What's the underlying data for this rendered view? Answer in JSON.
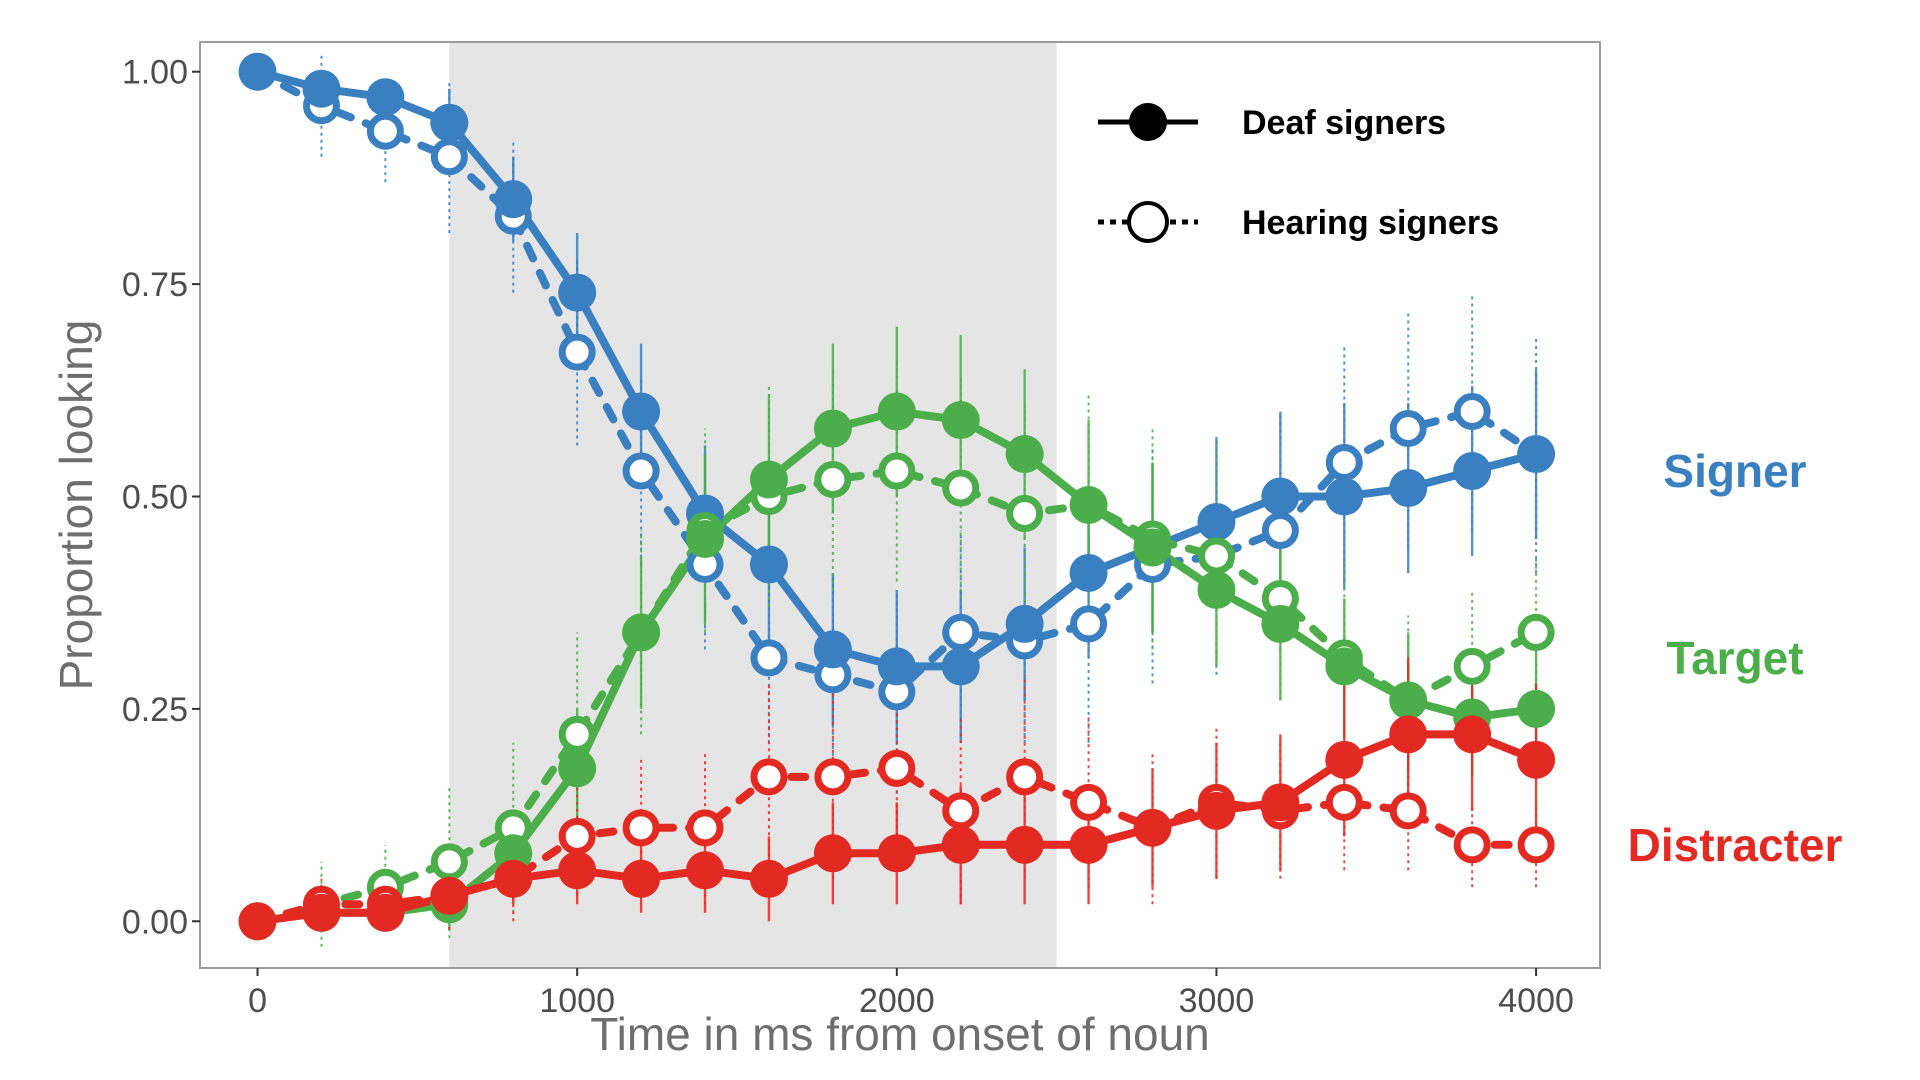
{
  "chart_data": {
    "type": "line",
    "title": "",
    "xlabel": "Time in ms from onset of noun",
    "ylabel": "Proportion looking",
    "xlim": [
      -180,
      4200
    ],
    "ylim": [
      -0.055,
      1.035
    ],
    "x_ticks": [
      0,
      1000,
      2000,
      3000,
      4000
    ],
    "x_tick_labels": [
      "0",
      "1000",
      "2000",
      "3000",
      "4000"
    ],
    "y_ticks": [
      0,
      0.25,
      0.5,
      0.75,
      1.0
    ],
    "y_tick_labels": [
      "0.00",
      "0.25",
      "0.50",
      "0.75",
      "1.00"
    ],
    "grid": false,
    "shaded_region": {
      "x_start": 600,
      "x_end": 2500,
      "color": "#e5e5e5"
    },
    "legend": {
      "position": "top-right",
      "entries": [
        {
          "label": "Deaf signers",
          "style": "solid",
          "marker": "filled-circle"
        },
        {
          "label": "Hearing signers",
          "style": "dotted",
          "marker": "open-circle"
        }
      ]
    },
    "colors": {
      "signer": "#3a7fc0",
      "target": "#4cae4a",
      "distracter": "#e22a23"
    },
    "x": [
      0,
      200,
      400,
      600,
      800,
      1000,
      1200,
      1400,
      1600,
      1800,
      2000,
      2200,
      2400,
      2600,
      2800,
      3000,
      3200,
      3400,
      3600,
      3800,
      4000
    ],
    "series": [
      {
        "name": "Signer",
        "group": "Deaf signers",
        "color": "#3a7fc0",
        "style": "solid",
        "values": [
          1.0,
          0.98,
          0.97,
          0.94,
          0.85,
          0.74,
          0.6,
          0.48,
          0.42,
          0.32,
          0.3,
          0.3,
          0.35,
          0.41,
          0.44,
          0.47,
          0.5,
          0.5,
          0.51,
          0.53,
          0.55
        ],
        "errors": [
          0,
          0.02,
          0.02,
          0.04,
          0.05,
          0.07,
          0.08,
          0.08,
          0.09,
          0.09,
          0.09,
          0.09,
          0.09,
          0.1,
          0.1,
          0.1,
          0.1,
          0.11,
          0.1,
          0.1,
          0.1
        ]
      },
      {
        "name": "Signer",
        "group": "Hearing signers",
        "color": "#3a7fc0",
        "style": "dotted",
        "values": [
          1.0,
          0.96,
          0.93,
          0.9,
          0.83,
          0.67,
          0.53,
          0.42,
          0.31,
          0.29,
          0.27,
          0.34,
          0.33,
          0.35,
          0.42,
          0.43,
          0.46,
          0.54,
          0.58,
          0.6,
          0.55
        ],
        "errors": [
          0,
          0.06,
          0.06,
          0.09,
          0.09,
          0.11,
          0.11,
          0.1,
          0.1,
          0.12,
          0.12,
          0.12,
          0.12,
          0.14,
          0.14,
          0.14,
          0.14,
          0.14,
          0.14,
          0.14,
          0.14
        ]
      },
      {
        "name": "Target",
        "group": "Deaf signers",
        "color": "#4cae4a",
        "style": "solid",
        "values": [
          0.0,
          0.01,
          0.01,
          0.02,
          0.08,
          0.18,
          0.34,
          0.45,
          0.52,
          0.58,
          0.6,
          0.59,
          0.55,
          0.49,
          0.44,
          0.39,
          0.35,
          0.3,
          0.26,
          0.24,
          0.25
        ],
        "errors": [
          0,
          0.02,
          0.02,
          0.03,
          0.05,
          0.07,
          0.09,
          0.1,
          0.1,
          0.1,
          0.1,
          0.1,
          0.1,
          0.1,
          0.1,
          0.09,
          0.09,
          0.08,
          0.08,
          0.07,
          0.07
        ]
      },
      {
        "name": "Target",
        "group": "Hearing signers",
        "color": "#4cae4a",
        "style": "dotted",
        "values": [
          0.0,
          0.02,
          0.04,
          0.07,
          0.11,
          0.22,
          0.34,
          0.46,
          0.5,
          0.52,
          0.53,
          0.51,
          0.48,
          0.49,
          0.45,
          0.43,
          0.38,
          0.31,
          0.26,
          0.3,
          0.34
        ],
        "errors": [
          0,
          0.05,
          0.05,
          0.09,
          0.1,
          0.12,
          0.12,
          0.12,
          0.13,
          0.13,
          0.13,
          0.13,
          0.13,
          0.13,
          0.13,
          0.13,
          0.12,
          0.11,
          0.1,
          0.09,
          0.09
        ]
      },
      {
        "name": "Distracter",
        "group": "Deaf signers",
        "color": "#e22a23",
        "style": "solid",
        "values": [
          0.0,
          0.01,
          0.01,
          0.03,
          0.05,
          0.06,
          0.05,
          0.06,
          0.05,
          0.08,
          0.08,
          0.09,
          0.09,
          0.09,
          0.11,
          0.13,
          0.14,
          0.19,
          0.22,
          0.22,
          0.19
        ],
        "errors": [
          0,
          0.01,
          0.01,
          0.02,
          0.03,
          0.04,
          0.04,
          0.05,
          0.05,
          0.06,
          0.06,
          0.07,
          0.07,
          0.07,
          0.07,
          0.08,
          0.08,
          0.09,
          0.09,
          0.09,
          0.09
        ]
      },
      {
        "name": "Distracter",
        "group": "Hearing signers",
        "color": "#e22a23",
        "style": "dotted",
        "values": [
          0.0,
          0.02,
          0.02,
          0.03,
          0.05,
          0.1,
          0.11,
          0.11,
          0.17,
          0.17,
          0.18,
          0.13,
          0.17,
          0.14,
          0.11,
          0.14,
          0.13,
          0.14,
          0.13,
          0.09,
          0.09
        ],
        "errors": [
          0,
          0.03,
          0.03,
          0.04,
          0.05,
          0.07,
          0.08,
          0.09,
          0.11,
          0.12,
          0.12,
          0.11,
          0.12,
          0.1,
          0.09,
          0.09,
          0.08,
          0.08,
          0.07,
          0.05,
          0.05
        ]
      }
    ],
    "series_labels": [
      {
        "text": "Signer",
        "color": "#3a7fc0",
        "y": 0.53
      },
      {
        "text": "Target",
        "color": "#4cae4a",
        "y": 0.31
      },
      {
        "text": "Distracter",
        "color": "#e22a23",
        "y": 0.09
      }
    ]
  }
}
